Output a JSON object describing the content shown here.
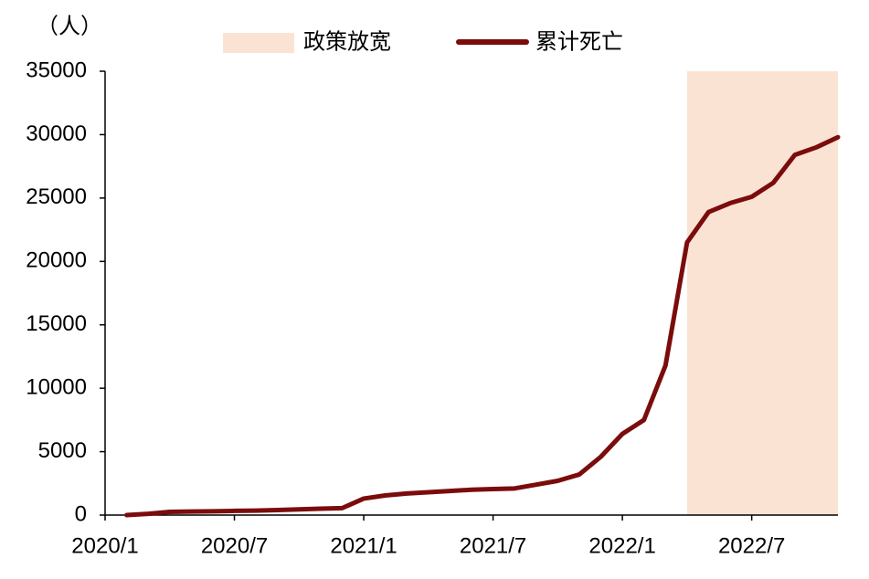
{
  "chart_data": {
    "type": "line",
    "y_unit": "（人）",
    "categories": [
      "2020/1",
      null,
      null,
      null,
      null,
      null,
      "2020/7",
      null,
      null,
      null,
      null,
      null,
      "2021/1",
      null,
      null,
      null,
      null,
      null,
      "2021/7",
      null,
      null,
      null,
      null,
      null,
      "2022/1",
      null,
      null,
      null,
      null,
      null,
      "2022/7",
      null,
      null,
      null,
      null
    ],
    "series": [
      {
        "name": "累计死亡",
        "color": "#7b0c0c",
        "values": [
          null,
          0,
          100,
          250,
          280,
          300,
          330,
          350,
          400,
          450,
          500,
          550,
          1300,
          1550,
          1700,
          1800,
          1900,
          2000,
          2050,
          2100,
          2400,
          2700,
          3200,
          4600,
          6400,
          7500,
          11800,
          21500,
          23900,
          24600,
          25100,
          26200,
          28400,
          29000,
          29800
        ]
      }
    ],
    "shade": {
      "name": "政策放宽",
      "color": "#fbe3d4",
      "from": 27,
      "to": 34
    },
    "ylim": [
      0,
      35000
    ],
    "yticks": [
      0,
      5000,
      10000,
      15000,
      20000,
      25000,
      30000,
      35000
    ]
  }
}
